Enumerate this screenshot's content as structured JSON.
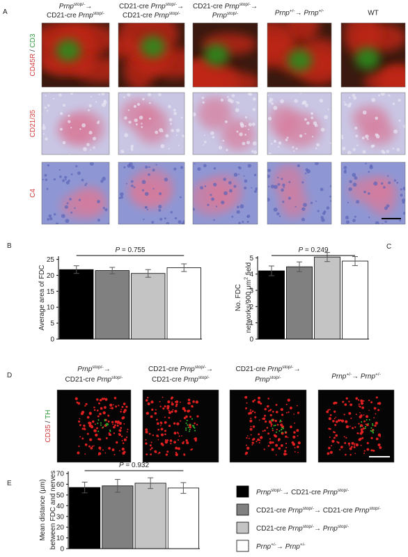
{
  "panel_labels": [
    "A",
    "B",
    "C",
    "D",
    "E"
  ],
  "panel_a": {
    "column_headers": [
      [
        [
          {
            "text": "Prnp",
            "style": "italic"
          },
          {
            "text": "stop/-",
            "style": "sup"
          },
          {
            "text": "→"
          }
        ],
        [
          {
            "text": "CD21-cre "
          },
          {
            "text": "Prnp",
            "style": "italic"
          },
          {
            "text": "stop/-",
            "style": "sup"
          }
        ]
      ],
      [
        [
          {
            "text": "CD21-cre "
          },
          {
            "text": "Prnp",
            "style": "italic"
          },
          {
            "text": "stop/-",
            "style": "sup"
          },
          {
            "text": "→"
          }
        ],
        [
          {
            "text": "CD21-cre "
          },
          {
            "text": "Prnp",
            "style": "italic"
          },
          {
            "text": "stop/-",
            "style": "sup"
          }
        ]
      ],
      [
        [
          {
            "text": "CD21-cre "
          },
          {
            "text": "Prnp",
            "style": "italic"
          },
          {
            "text": "stop/-",
            "style": "sup"
          },
          {
            "text": "→"
          }
        ],
        [
          {
            "text": "Prnp",
            "style": "italic"
          },
          {
            "text": "stop/-",
            "style": "sup"
          }
        ]
      ],
      [
        [
          {
            "text": "Prnp",
            "style": "italic"
          },
          {
            "text": "+/-",
            "style": "sup"
          },
          {
            "text": "→ "
          },
          {
            "text": "Prnp",
            "style": "italic"
          },
          {
            "text": "+/-",
            "style": "sup"
          }
        ]
      ],
      [
        [
          {
            "text": "WT"
          }
        ]
      ]
    ],
    "row_labels": [
      [
        {
          "text": "CD45R",
          "color": "#d23a3a"
        },
        {
          "text": " / ",
          "color": "#333333"
        },
        {
          "text": "CD3",
          "color": "#2e9a3a"
        }
      ],
      [
        {
          "text": "CD21/35",
          "color": "#d23a3a"
        }
      ],
      [
        {
          "text": "C4",
          "color": "#d23a3a"
        }
      ]
    ]
  },
  "panel_d": {
    "column_headers": [
      [
        [
          {
            "text": "Prnp",
            "style": "italic"
          },
          {
            "text": "stop/-",
            "style": "sup"
          },
          {
            "text": "→"
          }
        ],
        [
          {
            "text": "CD21-cre "
          },
          {
            "text": "Prnp",
            "style": "italic"
          },
          {
            "text": "stop/-",
            "style": "sup"
          }
        ]
      ],
      [
        [
          {
            "text": "CD21-cre "
          },
          {
            "text": "Prnp",
            "style": "italic"
          },
          {
            "text": "stop/-",
            "style": "sup"
          },
          {
            "text": "→"
          }
        ],
        [
          {
            "text": "CD21-cre "
          },
          {
            "text": "Prnp",
            "style": "italic"
          },
          {
            "text": "stop/-",
            "style": "sup"
          }
        ]
      ],
      [
        [
          {
            "text": "CD21-cre "
          },
          {
            "text": "Prnp",
            "style": "italic"
          },
          {
            "text": "stop/-",
            "style": "sup"
          },
          {
            "text": "→"
          }
        ],
        [
          {
            "text": "Prnp",
            "style": "italic"
          },
          {
            "text": "stop/-",
            "style": "sup"
          }
        ]
      ],
      [
        [
          {
            "text": "Prnp",
            "style": "italic"
          },
          {
            "text": "+/-",
            "style": "sup"
          },
          {
            "text": "→ "
          },
          {
            "text": "Prnp",
            "style": "italic"
          },
          {
            "text": "+/-",
            "style": "sup"
          }
        ]
      ]
    ],
    "row_label": [
      {
        "text": "CD35",
        "color": "#d23a3a"
      },
      {
        "text": " / ",
        "color": "#333333"
      },
      {
        "text": "TH",
        "color": "#2e9a3a"
      }
    ]
  },
  "chart_data": [
    {
      "type": "bar",
      "y_label": [
        [
          {
            "text": "Average area of FDC"
          }
        ]
      ],
      "values": [
        21.8,
        21.5,
        20.6,
        22.4
      ],
      "errors": [
        1.2,
        1.0,
        1.2,
        1.2
      ],
      "colors": [
        "#000000",
        "#808080",
        "#c4c4c4",
        "#ffffff"
      ],
      "ylim": [
        0,
        26
      ],
      "yticks": [
        0,
        5,
        10,
        15,
        20,
        25
      ],
      "annotation": [
        {
          "text": "P",
          "style": "italic"
        },
        {
          "text": " = 0.755"
        }
      ]
    },
    {
      "type": "bar",
      "y_label": [
        [
          {
            "text": "No. FDC"
          }
        ],
        [
          {
            "text": "networks/900 μm"
          },
          {
            "text": "2",
            "style": "sup"
          },
          {
            "text": " field"
          }
        ]
      ],
      "values": [
        4.2,
        4.45,
        5.05,
        4.8
      ],
      "errors": [
        0.3,
        0.3,
        0.28,
        0.28
      ],
      "colors": [
        "#000000",
        "#808080",
        "#c4c4c4",
        "#ffffff"
      ],
      "ylim": [
        0,
        5.1
      ],
      "yticks": [
        0,
        1,
        2,
        3,
        4,
        5
      ],
      "annotation": [
        {
          "text": "P",
          "style": "italic"
        },
        {
          "text": " = 0.249"
        }
      ]
    },
    {
      "type": "bar",
      "y_label": [
        [
          {
            "text": "Mean distance (µm)"
          }
        ],
        [
          {
            "text": "between FDC and nerves"
          }
        ]
      ],
      "values": [
        57,
        58.5,
        61,
        56.5
      ],
      "errors": [
        5,
        6,
        5,
        5
      ],
      "colors": [
        "#000000",
        "#808080",
        "#c4c4c4",
        "#ffffff"
      ],
      "ylim": [
        0,
        72
      ],
      "yticks": [
        0,
        10,
        20,
        30,
        40,
        50,
        60,
        70
      ],
      "annotation": [
        {
          "text": "P",
          "style": "italic"
        },
        {
          "text": " = 0.932"
        }
      ],
      "legend": [
        [
          {
            "text": "Prnp",
            "style": "italic"
          },
          {
            "text": "stop/-",
            "style": "sup"
          },
          {
            "text": "→ CD21-cre "
          },
          {
            "text": "Prnp",
            "style": "italic"
          },
          {
            "text": "stop/-",
            "style": "sup"
          }
        ],
        [
          {
            "text": "CD21-cre "
          },
          {
            "text": "Prnp",
            "style": "italic"
          },
          {
            "text": "stop/-",
            "style": "sup"
          },
          {
            "text": "→ CD21-cre "
          },
          {
            "text": "Prnp",
            "style": "italic"
          },
          {
            "text": "stop/-",
            "style": "sup"
          }
        ],
        [
          {
            "text": "CD21-cre "
          },
          {
            "text": "Prnp",
            "style": "italic"
          },
          {
            "text": "stop/-",
            "style": "sup"
          },
          {
            "text": "→ "
          },
          {
            "text": "Prnp",
            "style": "italic"
          },
          {
            "text": "stop/-",
            "style": "sup"
          }
        ],
        [
          {
            "text": "Prnp",
            "style": "italic"
          },
          {
            "text": "+/-",
            "style": "sup"
          },
          {
            "text": "→ "
          },
          {
            "text": "Prnp",
            "style": "italic"
          },
          {
            "text": "+/-",
            "style": "sup"
          }
        ]
      ]
    }
  ]
}
